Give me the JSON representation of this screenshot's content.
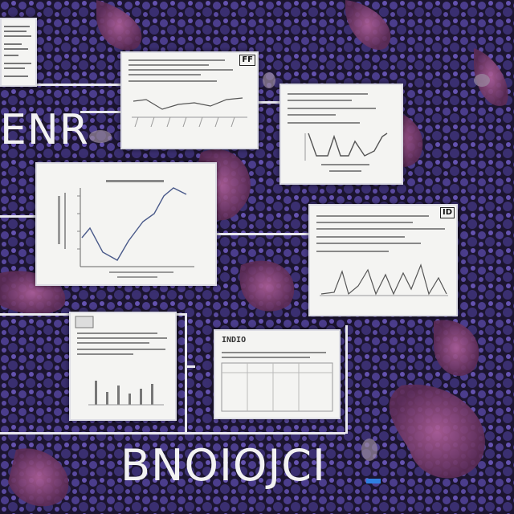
{
  "labels": {
    "top_left_text": "ENR",
    "bottom_text": "BNOIOJCI",
    "badge_1": "FF",
    "badge_2": "ID",
    "doc_title": "INDIO"
  },
  "colors": {
    "background": "#1c1530",
    "organic_blob": "#8a3f78",
    "cell_blue": "#5a4aa0",
    "connector": "#e8e8ee",
    "card": "#f4f4f2",
    "cursor": "#2f7fe0"
  },
  "cards": [
    {
      "name": "card-top-left-doc",
      "chart_type": "text"
    },
    {
      "name": "card-line-chart-small",
      "chart_type": "line"
    },
    {
      "name": "card-wave-chart",
      "chart_type": "line"
    },
    {
      "name": "card-main-line-chart",
      "chart_type": "line"
    },
    {
      "name": "card-spike-chart",
      "chart_type": "area"
    },
    {
      "name": "card-bar-doc",
      "chart_type": "bar"
    },
    {
      "name": "card-table-doc",
      "chart_type": "table"
    }
  ]
}
